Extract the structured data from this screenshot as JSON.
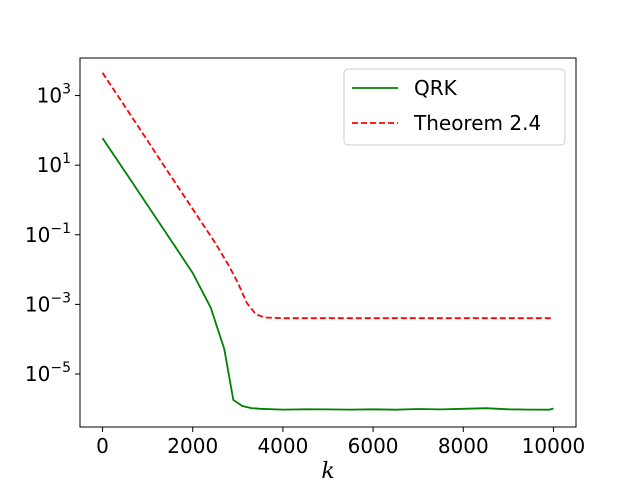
{
  "chart_data": {
    "type": "line",
    "title": "",
    "xlabel": "k",
    "ylabel": "",
    "xlim": [
      -500,
      10500
    ],
    "ylim": [
      3e-07,
      12000
    ],
    "y_scale": "log",
    "grid": false,
    "legend_position": "top-right",
    "x_ticks": [
      0,
      2000,
      4000,
      6000,
      8000,
      10000
    ],
    "x_tick_labels": [
      "0",
      "2000",
      "4000",
      "6000",
      "8000",
      "10000"
    ],
    "y_ticks": [
      1e-05,
      0.001,
      0.1,
      10,
      1000
    ],
    "y_tick_labels": [
      {
        "base": "10",
        "exp": "−5"
      },
      {
        "base": "10",
        "exp": "−3"
      },
      {
        "base": "10",
        "exp": "−1"
      },
      {
        "base": "10",
        "exp": "1"
      },
      {
        "base": "10",
        "exp": "3"
      }
    ],
    "series": [
      {
        "name": "QRK",
        "color": "#008000",
        "style": "solid",
        "x": [
          0,
          500,
          1000,
          1500,
          2000,
          2400,
          2700,
          2900,
          3100,
          3300,
          3500,
          4000,
          4500,
          5000,
          5500,
          6000,
          6500,
          7000,
          7500,
          8000,
          8500,
          9000,
          9500,
          9900,
          10000
        ],
        "y": [
          60,
          6.5,
          0.7,
          0.075,
          0.008,
          0.0008,
          5.2e-05,
          1.8e-06,
          1.2e-06,
          1.05e-06,
          1e-06,
          9.5e-07,
          9.7e-07,
          9.6e-07,
          9.5e-07,
          9.7e-07,
          9.4e-07,
          9.9e-07,
          9.6e-07,
          1e-06,
          1.04e-06,
          9.7e-07,
          9.5e-07,
          9.4e-07,
          1.02e-06
        ]
      },
      {
        "name": "Theorem 2.4",
        "color": "#ff0000",
        "style": "dashed",
        "x": [
          0,
          500,
          1000,
          1500,
          2000,
          2500,
          2800,
          3000,
          3200,
          3400,
          3600,
          4000,
          5000,
          6000,
          7000,
          8000,
          9000,
          10000
        ],
        "y": [
          4500,
          480,
          50,
          5.2,
          0.55,
          0.058,
          0.013,
          0.0042,
          0.0011,
          0.00052,
          0.00042,
          0.0004,
          0.0004,
          0.0004,
          0.0004,
          0.0004,
          0.0004,
          0.0004
        ]
      }
    ]
  }
}
